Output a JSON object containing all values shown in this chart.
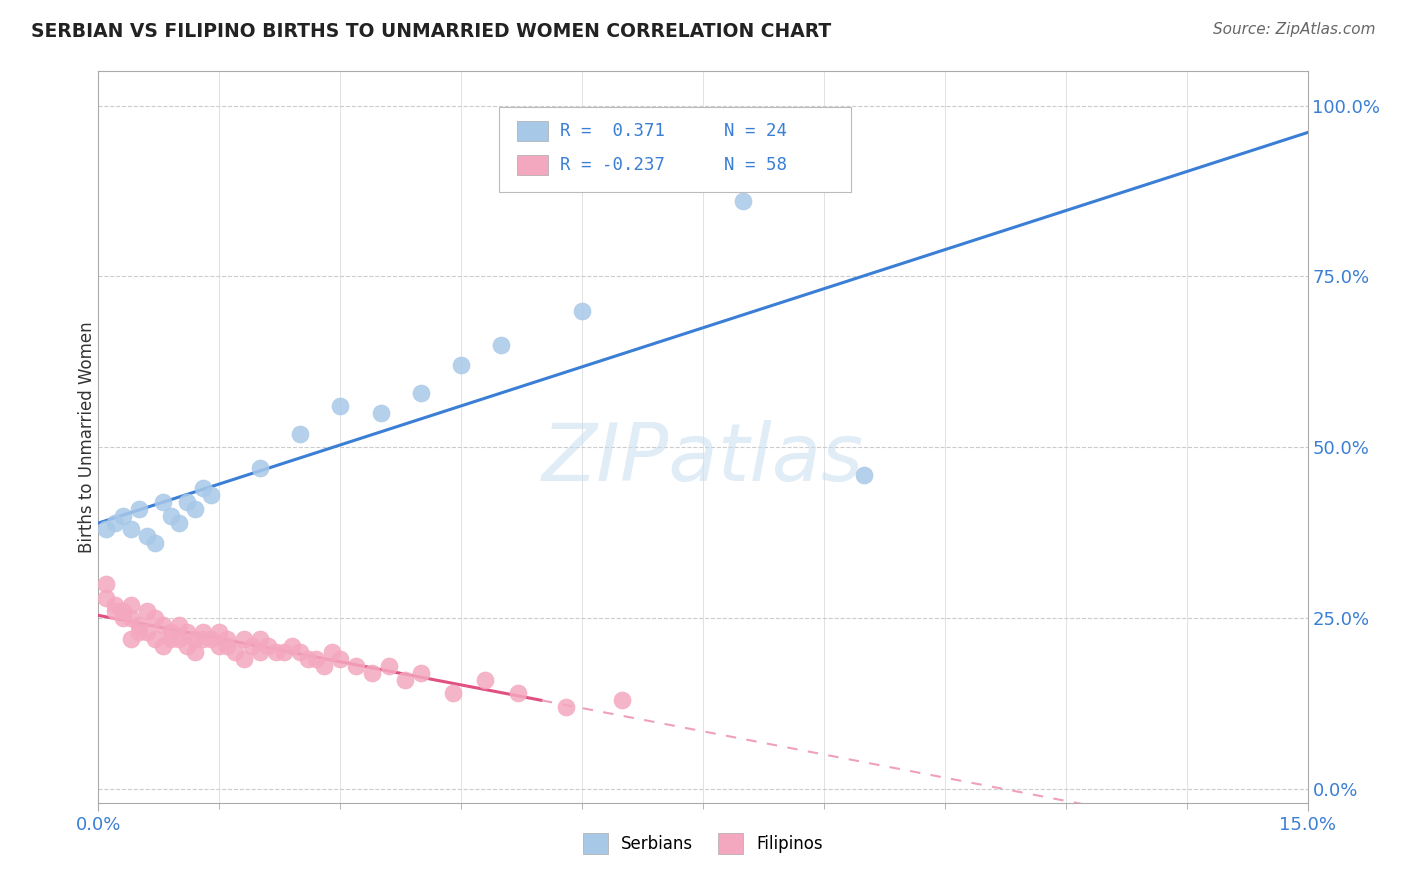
{
  "title": "SERBIAN VS FILIPINO BIRTHS TO UNMARRIED WOMEN CORRELATION CHART",
  "source": "Source: ZipAtlas.com",
  "ylabel": "Births to Unmarried Women",
  "right_yticks": [
    "0.0%",
    "25.0%",
    "50.0%",
    "75.0%",
    "100.0%"
  ],
  "right_ytick_vals": [
    0.0,
    0.25,
    0.5,
    0.75,
    1.0
  ],
  "watermark": "ZIPatlas",
  "serbian_color": "#a8c8e8",
  "filipino_color": "#f4a8c0",
  "trend_serbian_color": "#3a7fd5",
  "trend_filipino_solid_color": "#e05080",
  "trend_filipino_dash_color": "#f0a0b8",
  "serbian_points_x": [
    0.001,
    0.002,
    0.003,
    0.004,
    0.005,
    0.006,
    0.007,
    0.008,
    0.009,
    0.01,
    0.011,
    0.012,
    0.013,
    0.014,
    0.02,
    0.025,
    0.03,
    0.035,
    0.04,
    0.045,
    0.05,
    0.06,
    0.08,
    0.095
  ],
  "serbian_points_y": [
    0.38,
    0.39,
    0.4,
    0.38,
    0.41,
    0.37,
    0.36,
    0.42,
    0.4,
    0.39,
    0.42,
    0.41,
    0.44,
    0.43,
    0.47,
    0.52,
    0.56,
    0.55,
    0.58,
    0.62,
    0.65,
    0.7,
    0.86,
    0.46
  ],
  "filipino_points_x": [
    0.001,
    0.001,
    0.002,
    0.002,
    0.003,
    0.003,
    0.004,
    0.004,
    0.004,
    0.005,
    0.005,
    0.006,
    0.006,
    0.007,
    0.007,
    0.008,
    0.008,
    0.009,
    0.009,
    0.01,
    0.01,
    0.011,
    0.011,
    0.012,
    0.012,
    0.013,
    0.013,
    0.014,
    0.015,
    0.015,
    0.016,
    0.016,
    0.017,
    0.018,
    0.018,
    0.019,
    0.02,
    0.02,
    0.021,
    0.022,
    0.023,
    0.024,
    0.025,
    0.026,
    0.027,
    0.028,
    0.029,
    0.03,
    0.032,
    0.034,
    0.036,
    0.038,
    0.04,
    0.044,
    0.048,
    0.052,
    0.058,
    0.065
  ],
  "filipino_points_y": [
    0.28,
    0.3,
    0.27,
    0.26,
    0.26,
    0.25,
    0.27,
    0.25,
    0.22,
    0.24,
    0.23,
    0.26,
    0.23,
    0.25,
    0.22,
    0.24,
    0.21,
    0.23,
    0.22,
    0.24,
    0.22,
    0.23,
    0.21,
    0.22,
    0.2,
    0.23,
    0.22,
    0.22,
    0.23,
    0.21,
    0.22,
    0.21,
    0.2,
    0.22,
    0.19,
    0.21,
    0.22,
    0.2,
    0.21,
    0.2,
    0.2,
    0.21,
    0.2,
    0.19,
    0.19,
    0.18,
    0.2,
    0.19,
    0.18,
    0.17,
    0.18,
    0.16,
    0.17,
    0.14,
    0.16,
    0.14,
    0.12,
    0.13
  ],
  "xlim": [
    0.0,
    0.15
  ],
  "ylim": [
    -0.02,
    1.05
  ],
  "background_color": "#ffffff",
  "grid_color": "#cccccc",
  "grid_linestyle": "--"
}
